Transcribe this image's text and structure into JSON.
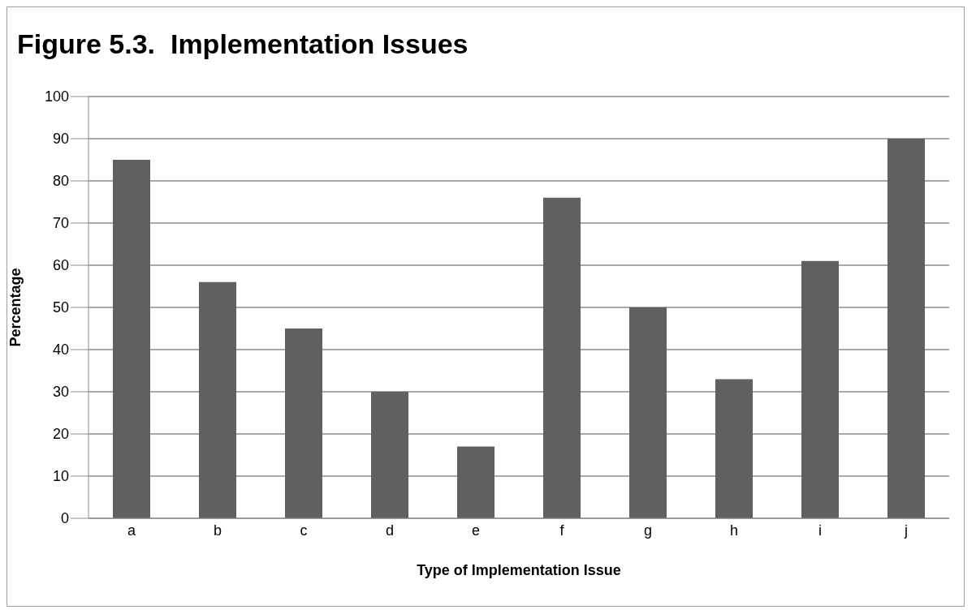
{
  "chart_data": {
    "type": "bar",
    "title": "Figure 5.3.  Implementation Issues",
    "xlabel": "Type of Implementation Issue",
    "ylabel": "Percentage",
    "categories": [
      "a",
      "b",
      "c",
      "d",
      "e",
      "f",
      "g",
      "h",
      "i",
      "j"
    ],
    "values": [
      85,
      56,
      45,
      30,
      17,
      76,
      50,
      33,
      61,
      90
    ],
    "color": "#606060",
    "ylim": [
      0,
      100
    ],
    "yticks": [
      0,
      10,
      20,
      30,
      40,
      50,
      60,
      70,
      80,
      90,
      100
    ],
    "grid": "y"
  }
}
